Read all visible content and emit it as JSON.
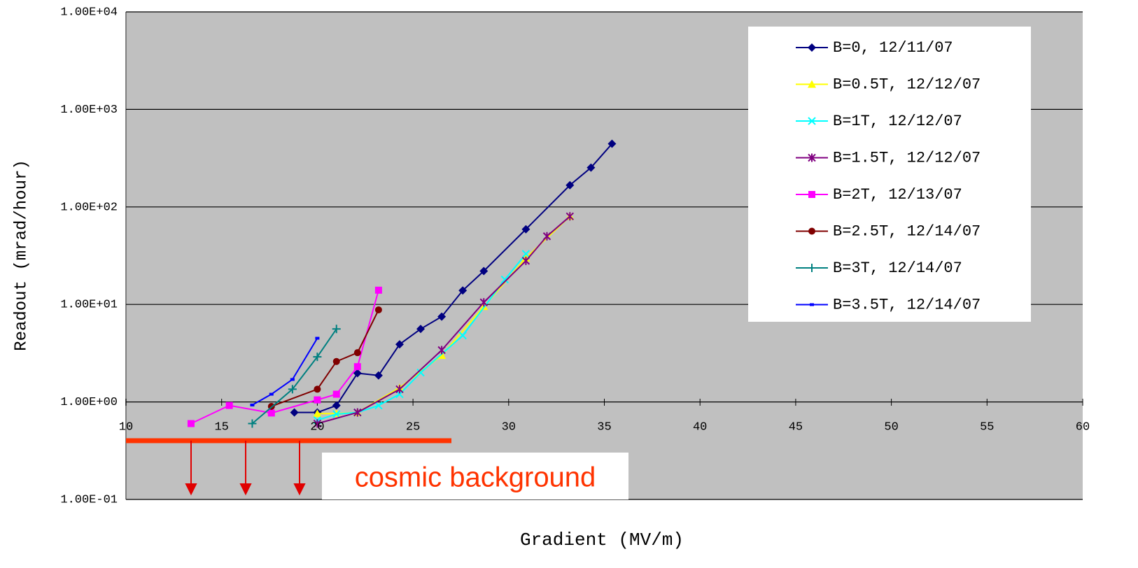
{
  "chart_data": {
    "type": "line",
    "x_label": "Gradient (MV/m)",
    "y_label": "Readout (mrad/hour)",
    "annotation": "cosmic background",
    "y_log": true,
    "grid": true,
    "legend_position": "upper right",
    "xlim": [
      10,
      60
    ],
    "xticks": [
      10,
      15,
      20,
      25,
      30,
      35,
      40,
      45,
      50,
      55,
      60
    ],
    "ylim": [
      0.1,
      10000
    ],
    "yticks": [
      {
        "value": 0.1,
        "label": "1.00E-01"
      },
      {
        "value": 1,
        "label": "1.00E+00"
      },
      {
        "value": 10,
        "label": "1.00E+01"
      },
      {
        "value": 100,
        "label": "1.00E+02"
      },
      {
        "value": 1000,
        "label": "1.00E+03"
      },
      {
        "value": 10000,
        "label": "1.00E+04"
      }
    ],
    "series": [
      {
        "name": "B=0, 12/11/07",
        "color": "#000080",
        "marker": "diamond",
        "x": [
          18.8,
          20.0,
          21.0,
          22.1,
          23.2,
          24.3,
          25.4,
          26.5,
          27.6,
          28.7,
          30.9,
          33.2,
          34.3,
          35.4
        ],
        "values": [
          0.78,
          0.78,
          0.92,
          1.97,
          1.87,
          3.9,
          5.6,
          7.5,
          13.9,
          22,
          59,
          167,
          253,
          444
        ]
      },
      {
        "name": "B=0.5T, 12/12/07",
        "color": "#ffff00",
        "marker": "triangle",
        "x": [
          20.0,
          21.0,
          22.1,
          24.3,
          26.5,
          28.7,
          30.9,
          33.2
        ],
        "values": [
          0.76,
          0.76,
          0.78,
          1.4,
          3.0,
          9.5,
          30,
          80
        ]
      },
      {
        "name": "B=1T, 12/12/07",
        "color": "#00ffff",
        "marker": "x",
        "x": [
          20.0,
          21.0,
          22.1,
          23.2,
          24.3,
          25.4,
          27.6,
          29.8,
          30.9
        ],
        "values": [
          0.65,
          0.75,
          0.78,
          0.92,
          1.2,
          2.0,
          4.8,
          18,
          33
        ]
      },
      {
        "name": "B=1.5T, 12/12/07",
        "color": "#800080",
        "marker": "asterisk",
        "x": [
          20.0,
          22.1,
          24.3,
          26.5,
          28.7,
          30.9,
          32.0,
          33.2
        ],
        "values": [
          0.6,
          0.78,
          1.35,
          3.4,
          10.5,
          28,
          50,
          80
        ]
      },
      {
        "name": "B=2T, 12/13/07",
        "color": "#ff00ff",
        "marker": "square",
        "x": [
          13.4,
          15.4,
          17.6,
          20.0,
          21.0,
          22.1,
          23.2
        ],
        "values": [
          0.6,
          0.92,
          0.77,
          1.05,
          1.2,
          2.3,
          14
        ]
      },
      {
        "name": "B=2.5T, 12/14/07",
        "color": "#800000",
        "marker": "circle",
        "x": [
          17.6,
          20.0,
          21.0,
          22.1,
          23.2
        ],
        "values": [
          0.9,
          1.35,
          2.6,
          3.2,
          8.8
        ]
      },
      {
        "name": "B=3T, 12/14/07",
        "color": "#008080",
        "marker": "plus",
        "x": [
          16.6,
          18.7,
          20.0,
          21.0
        ],
        "values": [
          0.6,
          1.35,
          2.9,
          5.6
        ]
      },
      {
        "name": "B=3.5T, 12/14/07",
        "color": "#0000ff",
        "marker": "dash",
        "x": [
          16.6,
          17.6,
          18.7,
          20.0
        ],
        "values": [
          0.93,
          1.2,
          1.7,
          4.5
        ]
      }
    ]
  }
}
